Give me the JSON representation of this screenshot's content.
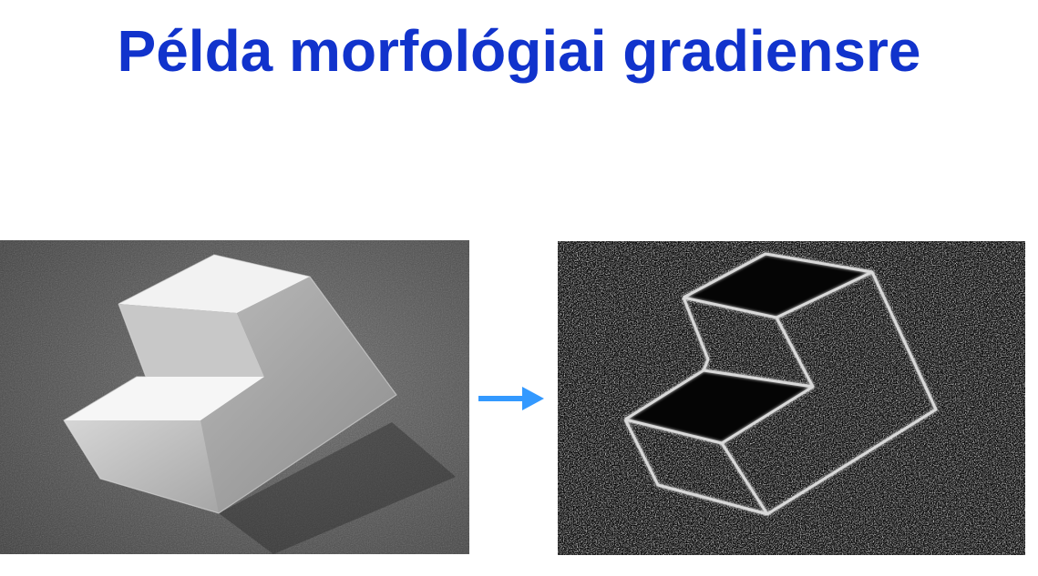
{
  "slide": {
    "title": "Példa morfológiai gradiensre"
  },
  "images": {
    "original": {
      "subject": "grayscale-photo-step-block"
    },
    "result": {
      "subject": "morphological-gradient-edge-image"
    }
  },
  "icons": {
    "transition": "right-arrow-icon"
  },
  "colors": {
    "title": "#1133cc",
    "arrow": "#3399ff",
    "background": "#ffffff"
  }
}
